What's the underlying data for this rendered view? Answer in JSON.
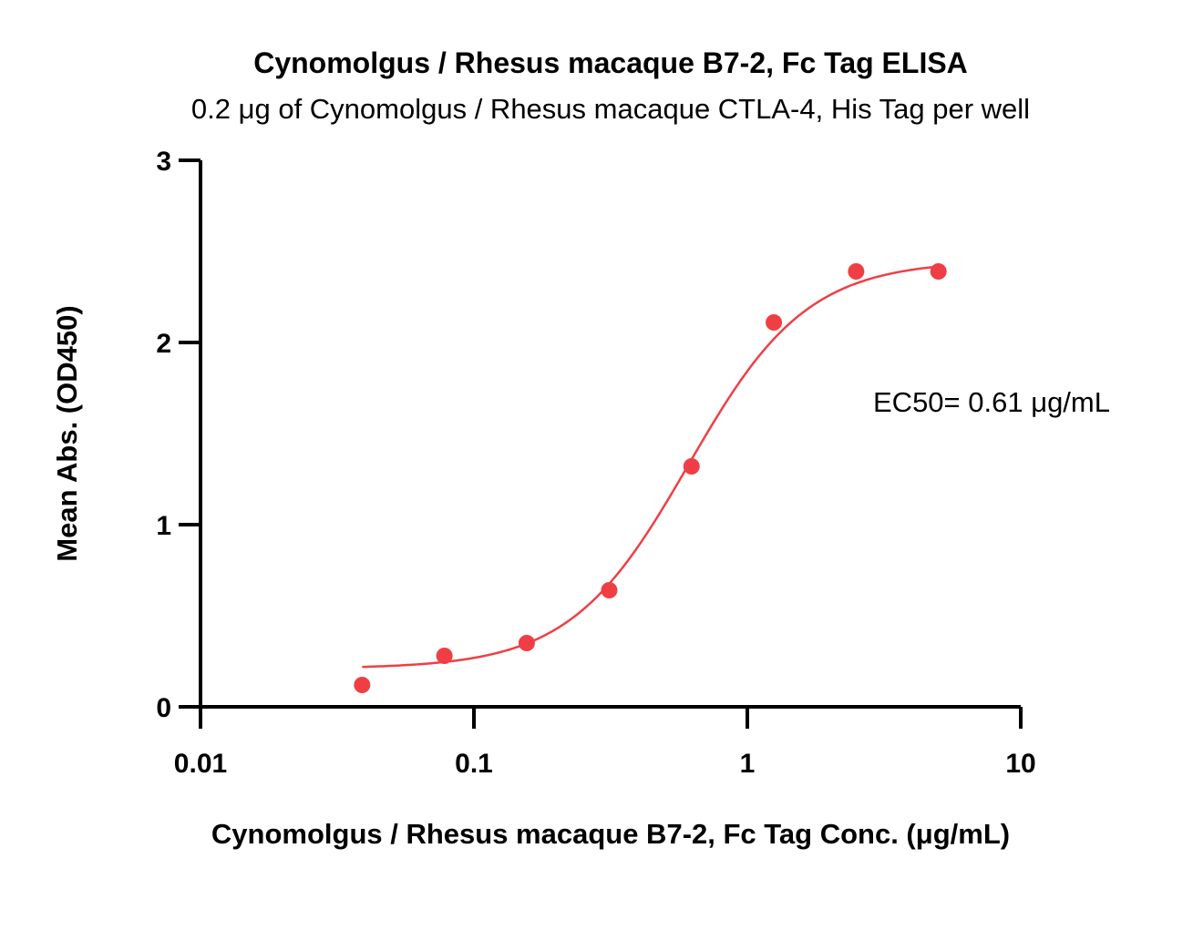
{
  "chart_data": {
    "type": "scatter",
    "title": "Cynomolgus / Rhesus macaque B7-2, Fc Tag ELISA",
    "subtitle": "0.2 μg of Cynomolgus / Rhesus macaque CTLA-4, His Tag per well",
    "xlabel": "Cynomolgus / Rhesus macaque B7-2, Fc Tag Conc. (μg/mL)",
    "ylabel": "Mean Abs. (OD450)",
    "x_scale": "log",
    "xlim": [
      0.01,
      10
    ],
    "ylim": [
      0,
      3
    ],
    "x_ticks": [
      0.01,
      0.1,
      1,
      10
    ],
    "x_tick_labels": [
      "0.01",
      "0.1",
      "1",
      "10"
    ],
    "y_ticks": [
      0,
      1,
      2,
      3
    ],
    "y_tick_labels": [
      "0",
      "1",
      "2",
      "3"
    ],
    "grid": false,
    "series": [
      {
        "points": [
          {
            "x": 0.039,
            "y": 0.12
          },
          {
            "x": 0.078,
            "y": 0.28
          },
          {
            "x": 0.156,
            "y": 0.35
          },
          {
            "x": 0.3125,
            "y": 0.64
          },
          {
            "x": 0.625,
            "y": 1.32
          },
          {
            "x": 1.25,
            "y": 2.11
          },
          {
            "x": 2.5,
            "y": 2.39
          },
          {
            "x": 5,
            "y": 2.39
          }
        ],
        "fit": {
          "model": "4PL",
          "bottom": 0.21,
          "top": 2.45,
          "ec50": 0.61,
          "hill": 2.0,
          "x_range": [
            0.039,
            5
          ]
        },
        "color": "#ef3f45"
      }
    ],
    "annotation": "EC50= 0.61 μg/mL"
  }
}
